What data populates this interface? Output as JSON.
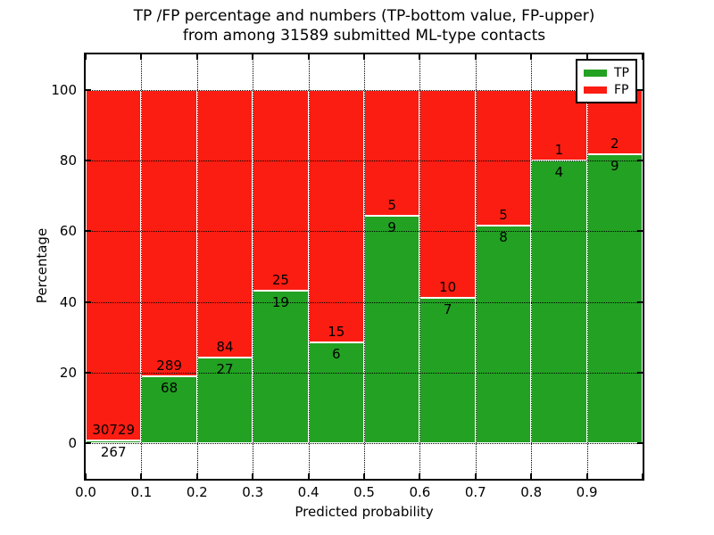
{
  "chart_data": {
    "type": "bar",
    "stacked": true,
    "title_line1": "TP /FP percentage and numbers (TP-bottom value, FP-upper)",
    "title_line2": "from among 31589 submitted ML-type contacts",
    "xlabel": "Predicted probability",
    "ylabel": "Percentage",
    "total_submitted": 31589,
    "categories": [
      "0.0-0.1",
      "0.1-0.2",
      "0.2-0.3",
      "0.3-0.4",
      "0.4-0.5",
      "0.5-0.6",
      "0.6-0.7",
      "0.7-0.8",
      "0.8-0.9",
      "0.9-1.0"
    ],
    "series": [
      {
        "name": "TP",
        "color": "#23a123",
        "counts": [
          267,
          68,
          27,
          19,
          6,
          9,
          7,
          8,
          4,
          9
        ]
      },
      {
        "name": "FP",
        "color": "#fb1d12",
        "counts": [
          30729,
          289,
          84,
          25,
          15,
          5,
          10,
          5,
          1,
          2
        ]
      }
    ],
    "tp_percent": [
      0.86,
      19.05,
      24.32,
      43.18,
      28.57,
      64.29,
      41.18,
      61.54,
      80.0,
      81.82
    ],
    "xticks": [
      "0.0",
      "0.1",
      "0.2",
      "0.3",
      "0.4",
      "0.5",
      "0.6",
      "0.7",
      "0.8",
      "0.9"
    ],
    "yticks": [
      0,
      20,
      40,
      60,
      80,
      100
    ],
    "xlim": [
      0.0,
      1.0
    ],
    "ylim": [
      -10,
      110
    ],
    "grid": "dotted",
    "bar_edge_color": "#ffffff",
    "legend": {
      "position": "upper right"
    }
  }
}
